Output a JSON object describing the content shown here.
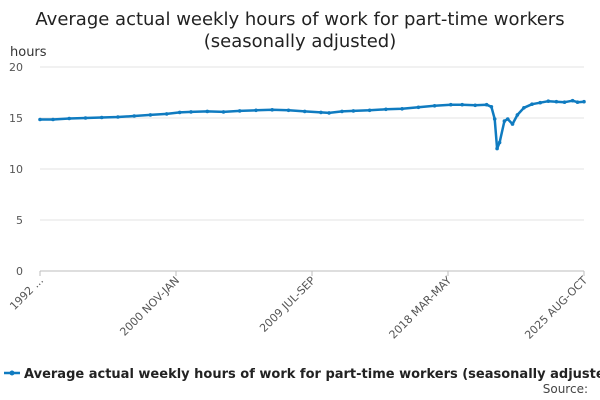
{
  "chart_data": {
    "type": "line",
    "title": "Average actual weekly hours of work for part-time workers (seasonally adjusted)",
    "title_lines": [
      "Average actual weekly hours of work for part-time workers",
      "(seasonally adjusted)"
    ],
    "ylabel": "hours",
    "ylim": [
      0,
      20
    ],
    "yticks": [
      0,
      5,
      10,
      15,
      20
    ],
    "xticks": [
      "1992 ...",
      "2000 NOV-JAN",
      "2009 JUL-SEP",
      "2018 MAR-MAY",
      "2025 AUG-OCT"
    ],
    "x_range": [
      "1992 MAR-MAY",
      "2025 AUG-OCT"
    ],
    "grid": true,
    "legend_position": "bottom",
    "series": [
      {
        "name": "Average actual weekly hours of work for part-time workers (seasonally adjusted)",
        "color": "#0f7bc0",
        "values": [
          [
            1992.2,
            14.85
          ],
          [
            1993.0,
            14.85
          ],
          [
            1994.0,
            14.95
          ],
          [
            1995.0,
            15.0
          ],
          [
            1996.0,
            15.05
          ],
          [
            1997.0,
            15.1
          ],
          [
            1998.0,
            15.2
          ],
          [
            1999.0,
            15.3
          ],
          [
            2000.0,
            15.4
          ],
          [
            2000.8,
            15.55
          ],
          [
            2001.5,
            15.6
          ],
          [
            2002.5,
            15.65
          ],
          [
            2003.5,
            15.6
          ],
          [
            2004.5,
            15.7
          ],
          [
            2005.5,
            15.75
          ],
          [
            2006.5,
            15.8
          ],
          [
            2007.5,
            15.75
          ],
          [
            2008.5,
            15.65
          ],
          [
            2009.5,
            15.55
          ],
          [
            2010.0,
            15.5
          ],
          [
            2010.8,
            15.65
          ],
          [
            2011.5,
            15.7
          ],
          [
            2012.5,
            15.75
          ],
          [
            2013.5,
            15.85
          ],
          [
            2014.5,
            15.9
          ],
          [
            2015.5,
            16.05
          ],
          [
            2016.5,
            16.2
          ],
          [
            2017.5,
            16.3
          ],
          [
            2018.2,
            16.3
          ],
          [
            2019.0,
            16.25
          ],
          [
            2019.7,
            16.3
          ],
          [
            2020.0,
            16.1
          ],
          [
            2020.2,
            14.9
          ],
          [
            2020.35,
            12.0
          ],
          [
            2020.5,
            12.6
          ],
          [
            2020.8,
            14.7
          ],
          [
            2021.0,
            14.9
          ],
          [
            2021.3,
            14.4
          ],
          [
            2021.6,
            15.3
          ],
          [
            2022.0,
            16.0
          ],
          [
            2022.5,
            16.35
          ],
          [
            2023.0,
            16.5
          ],
          [
            2023.5,
            16.65
          ],
          [
            2024.0,
            16.6
          ],
          [
            2024.5,
            16.55
          ],
          [
            2025.0,
            16.7
          ],
          [
            2025.3,
            16.55
          ],
          [
            2025.7,
            16.6
          ]
        ]
      }
    ]
  },
  "source_label": "Source:"
}
